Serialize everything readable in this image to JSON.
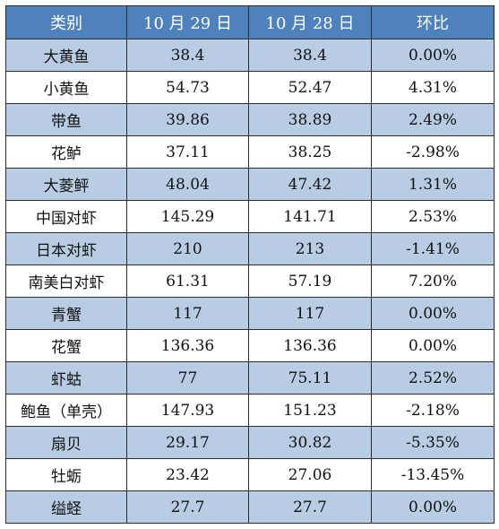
{
  "table": {
    "headers": [
      "类别",
      "10 月 29 日",
      "10 月 28 日",
      "环比"
    ],
    "rows": [
      [
        "大黄鱼",
        "38.4",
        "38.4",
        "0.00%"
      ],
      [
        "小黄鱼",
        "54.73",
        "52.47",
        "4.31%"
      ],
      [
        "带鱼",
        "39.86",
        "38.89",
        "2.49%"
      ],
      [
        "花鲈",
        "37.11",
        "38.25",
        "-2.98%"
      ],
      [
        "大菱鲆",
        "48.04",
        "47.42",
        "1.31%"
      ],
      [
        "中国对虾",
        "145.29",
        "141.71",
        "2.53%"
      ],
      [
        "日本对虾",
        "210",
        "213",
        "-1.41%"
      ],
      [
        "南美白对虾",
        "61.31",
        "57.19",
        "7.20%"
      ],
      [
        "青蟹",
        "117",
        "117",
        "0.00%"
      ],
      [
        "花蟹",
        "136.36",
        "136.36",
        "0.00%"
      ],
      [
        "虾蛄",
        "77",
        "75.11",
        "2.52%"
      ],
      [
        "鲍鱼（单壳）",
        "147.93",
        "151.23",
        "-2.18%"
      ],
      [
        "扇贝",
        "29.17",
        "30.82",
        "-5.35%"
      ],
      [
        "牡蛎",
        "23.42",
        "27.06",
        "-13.45%"
      ],
      [
        "缢蛏",
        "27.7",
        "27.7",
        "0.00%"
      ]
    ]
  },
  "colors": {
    "header_bg": "#4f81bd",
    "header_text": "#ffffff",
    "band_bg": "#b8cce4",
    "plain_bg": "#ffffff",
    "border": "#2b2b2b"
  }
}
